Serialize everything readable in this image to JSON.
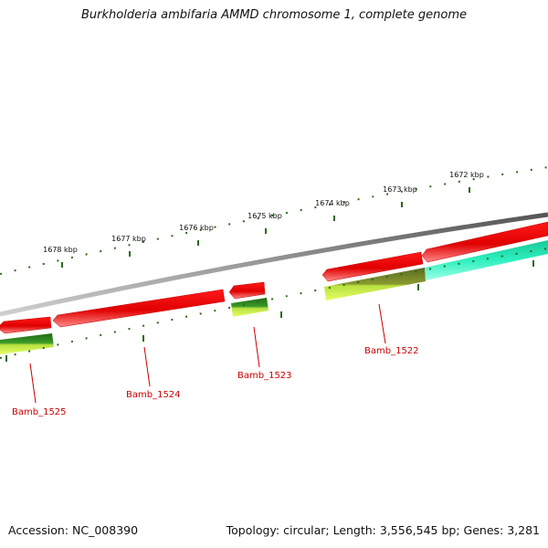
{
  "title": "Burkholderia ambifaria AMMD chromosome 1, complete genome",
  "footer": {
    "accession": "Accession: NC_008390",
    "topology": "Topology: circular; Length: 3,556,545 bp; Genes: 3,281"
  },
  "ruler": {
    "tick_labels": [
      "1678 kbp",
      "1677 kbp",
      "1676 kbp",
      "1675 kbp",
      "1674 kbp",
      "1673 kbp",
      "1672 kbp"
    ]
  },
  "genes": [
    "Bamb_1525",
    "Bamb_1524",
    "Bamb_1523",
    "Bamb_1522"
  ],
  "colors": {
    "backbone": "#777777",
    "gene_arrow": "#e80000",
    "gene_arrow_light": "#ff8080",
    "feature_green_dark": "#2a7a1e",
    "feature_yellow_green": "#c8f040",
    "feature_olive": "#7a7a2a",
    "feature_cyan": "#22e0b0",
    "label_red": "#cc0000",
    "tick_green": "#2a6a1a"
  }
}
